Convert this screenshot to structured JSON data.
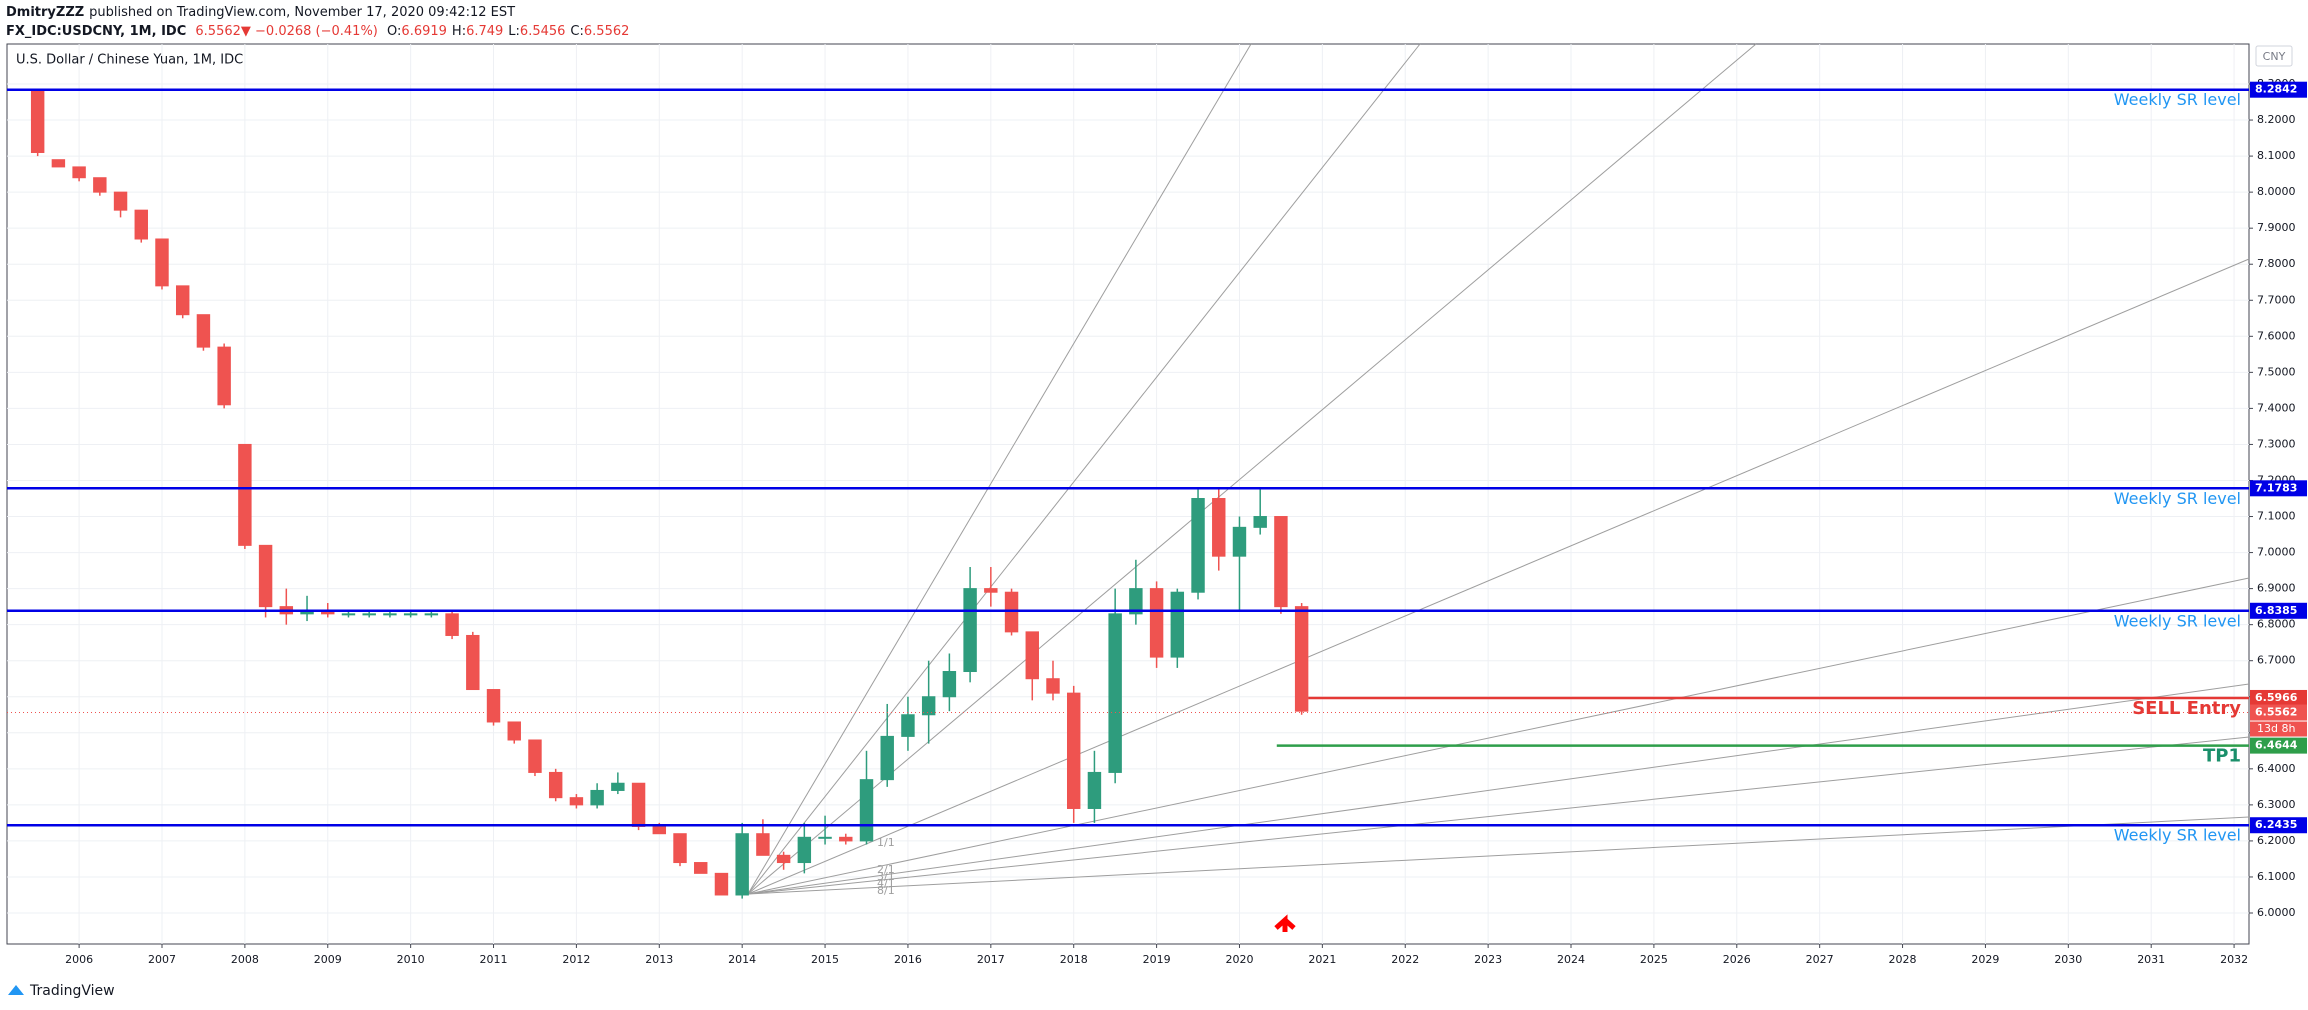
{
  "header": {
    "author": "DmitryZZZ",
    "published": "published on TradingView.com, November 17, 2020 09:42:12 EST",
    "symbol": "FX_IDC:USDCNY, 1M, IDC",
    "last": 6.5562,
    "change": "−0.0268 (−0.41%)",
    "ohlc": [
      {
        "label": "O:",
        "value": 6.6919
      },
      {
        "label": "H:",
        "value": 6.749
      },
      {
        "label": "L:",
        "value": 6.5456
      },
      {
        "label": "C:",
        "value": 6.5562
      }
    ]
  },
  "footer": "TradingView",
  "fan_labels": [
    "1/1",
    "2/1",
    "3/1",
    "4/1",
    "8/1"
  ],
  "chart_data": {
    "type": "candlestick",
    "title": "U.S. Dollar / Chinese Yuan, 1M, IDC",
    "currency": "CNY",
    "up_color": "#2e9c7d",
    "down_color": "#ef5350",
    "x": [
      2005.5,
      2005.75,
      2006,
      2006.25,
      2006.5,
      2006.75,
      2007,
      2007.25,
      2007.5,
      2007.75,
      2008,
      2008.25,
      2008.5,
      2008.75,
      2009,
      2009.25,
      2009.5,
      2009.75,
      2010,
      2010.25,
      2010.5,
      2010.75,
      2011,
      2011.25,
      2011.5,
      2011.75,
      2012,
      2012.25,
      2012.5,
      2012.75,
      2013,
      2013.25,
      2013.5,
      2013.75,
      2014,
      2014.25,
      2014.5,
      2014.75,
      2015,
      2015.25,
      2015.5,
      2015.75,
      2016,
      2016.25,
      2016.5,
      2016.75,
      2017,
      2017.25,
      2017.5,
      2017.75,
      2018,
      2018.25,
      2018.5,
      2018.75,
      2019,
      2019.25,
      2019.5,
      2019.75,
      2020,
      2020.25,
      2020.5,
      2020.75
    ],
    "open": [
      8.28,
      8.09,
      8.07,
      8.04,
      8.0,
      7.95,
      7.87,
      7.74,
      7.66,
      7.57,
      7.3,
      7.02,
      6.85,
      6.83,
      6.84,
      6.83,
      6.83,
      6.83,
      6.83,
      6.83,
      6.83,
      6.77,
      6.62,
      6.53,
      6.48,
      6.39,
      6.32,
      6.3,
      6.34,
      6.36,
      6.24,
      6.22,
      6.14,
      6.11,
      6.05,
      6.22,
      6.16,
      6.14,
      6.21,
      6.21,
      6.2,
      6.37,
      6.49,
      6.55,
      6.6,
      6.67,
      6.9,
      6.89,
      6.78,
      6.65,
      6.61,
      6.29,
      6.39,
      6.83,
      6.9,
      6.71,
      6.89,
      7.15,
      6.99,
      7.07,
      7.1,
      6.85
    ],
    "high": [
      8.28,
      8.09,
      8.07,
      8.04,
      8.0,
      7.95,
      7.87,
      7.74,
      7.66,
      7.58,
      7.3,
      7.02,
      6.9,
      6.88,
      6.86,
      6.84,
      6.84,
      6.84,
      6.84,
      6.84,
      6.84,
      6.78,
      6.62,
      6.53,
      6.48,
      6.4,
      6.33,
      6.36,
      6.39,
      6.36,
      6.25,
      6.22,
      6.14,
      6.11,
      6.25,
      6.26,
      6.17,
      6.25,
      6.27,
      6.22,
      6.45,
      6.58,
      6.6,
      6.7,
      6.72,
      6.96,
      6.96,
      6.9,
      6.78,
      6.7,
      6.63,
      6.45,
      6.9,
      6.98,
      6.92,
      6.9,
      7.18,
      7.18,
      7.1,
      7.18,
      7.1,
      6.86
    ],
    "low": [
      8.1,
      8.07,
      8.03,
      7.99,
      7.93,
      7.86,
      7.73,
      7.65,
      7.56,
      7.4,
      7.01,
      6.82,
      6.8,
      6.81,
      6.82,
      6.82,
      6.82,
      6.82,
      6.82,
      6.82,
      6.76,
      6.62,
      6.52,
      6.47,
      6.38,
      6.31,
      6.29,
      6.29,
      6.33,
      6.23,
      6.22,
      6.13,
      6.11,
      6.05,
      6.04,
      6.16,
      6.12,
      6.11,
      6.19,
      6.19,
      6.19,
      6.35,
      6.45,
      6.47,
      6.56,
      6.64,
      6.85,
      6.77,
      6.59,
      6.59,
      6.25,
      6.25,
      6.36,
      6.8,
      6.68,
      6.68,
      6.87,
      6.95,
      6.84,
      7.05,
      6.83,
      6.55
    ],
    "close": [
      8.11,
      8.07,
      8.04,
      8.0,
      7.95,
      7.87,
      7.74,
      7.66,
      7.57,
      7.41,
      7.02,
      6.85,
      6.83,
      6.84,
      6.83,
      6.83,
      6.83,
      6.83,
      6.83,
      6.83,
      6.77,
      6.62,
      6.53,
      6.48,
      6.39,
      6.32,
      6.3,
      6.34,
      6.36,
      6.24,
      6.22,
      6.14,
      6.11,
      6.05,
      6.22,
      6.16,
      6.14,
      6.21,
      6.21,
      6.2,
      6.37,
      6.49,
      6.55,
      6.6,
      6.67,
      6.9,
      6.89,
      6.78,
      6.65,
      6.61,
      6.29,
      6.39,
      6.83,
      6.9,
      6.71,
      6.89,
      7.15,
      6.99,
      7.07,
      7.1,
      6.85,
      6.56
    ],
    "xlim": [
      2005.13,
      2032.18
    ],
    "xticks": [
      2006,
      2007,
      2008,
      2009,
      2010,
      2011,
      2012,
      2013,
      2014,
      2015,
      2016,
      2017,
      2018,
      2019,
      2020,
      2021,
      2022,
      2023,
      2024,
      2025,
      2026,
      2027,
      2028,
      2029,
      2030,
      2031,
      2032
    ],
    "ylim": [
      5.914,
      8.411
    ],
    "yticks": [
      {
        "value": 6,
        "label": "6.0000"
      },
      {
        "value": 6.1,
        "label": "6.1000"
      },
      {
        "value": 6.2,
        "label": "6.2000"
      },
      {
        "value": 6.3,
        "label": "6.3000"
      },
      {
        "value": 6.4,
        "label": "6.4000"
      },
      {
        "value": 6.5,
        "label": "6.5000"
      },
      {
        "value": 6.6,
        "label": "6.6000"
      },
      {
        "value": 6.7,
        "label": "6.7000"
      },
      {
        "value": 6.8,
        "label": "6.8000"
      },
      {
        "value": 6.9,
        "label": "6.9000"
      },
      {
        "value": 7,
        "label": "7.0000"
      },
      {
        "value": 7.1,
        "label": "7.1000"
      },
      {
        "value": 7.2,
        "label": "7.2000"
      },
      {
        "value": 7.3,
        "label": "7.3000"
      },
      {
        "value": 7.4,
        "label": "7.4000"
      },
      {
        "value": 7.5,
        "label": "7.5000"
      },
      {
        "value": 7.6,
        "label": "7.6000"
      },
      {
        "value": 7.7,
        "label": "7.7000"
      },
      {
        "value": 7.8,
        "label": "7.8000"
      },
      {
        "value": 7.9,
        "label": "7.9000"
      },
      {
        "value": 8,
        "label": "8.0000"
      },
      {
        "value": 8.1,
        "label": "8.1000"
      },
      {
        "value": 8.2,
        "label": "8.2000"
      },
      {
        "value": 8.3,
        "label": "8.3000"
      }
    ],
    "grid": true,
    "levels": [
      {
        "name": "Weekly SR level",
        "value": 8.2842,
        "color": "#0000e6",
        "text_color": "#2196f3"
      },
      {
        "name": "Weekly SR level",
        "value": 7.1783,
        "color": "#0000e6",
        "text_color": "#2196f3"
      },
      {
        "name": "Weekly SR level",
        "value": 6.8385,
        "color": "#0000e6",
        "text_color": "#2196f3"
      },
      {
        "name": "SELL Entry",
        "value": 6.5966,
        "color": "#e53935",
        "text_color": "#e53935",
        "from": 2020.83
      },
      {
        "name": "TP1",
        "value": 6.4644,
        "color": "#2e9e4a",
        "text_color": "#1a8f6a",
        "from": 2020.45
      },
      {
        "name": "Weekly SR level",
        "value": 6.2435,
        "color": "#0000e6",
        "text_color": "#2196f3"
      }
    ],
    "last_price": 6.5562,
    "countdown": "13d 8h"
  }
}
